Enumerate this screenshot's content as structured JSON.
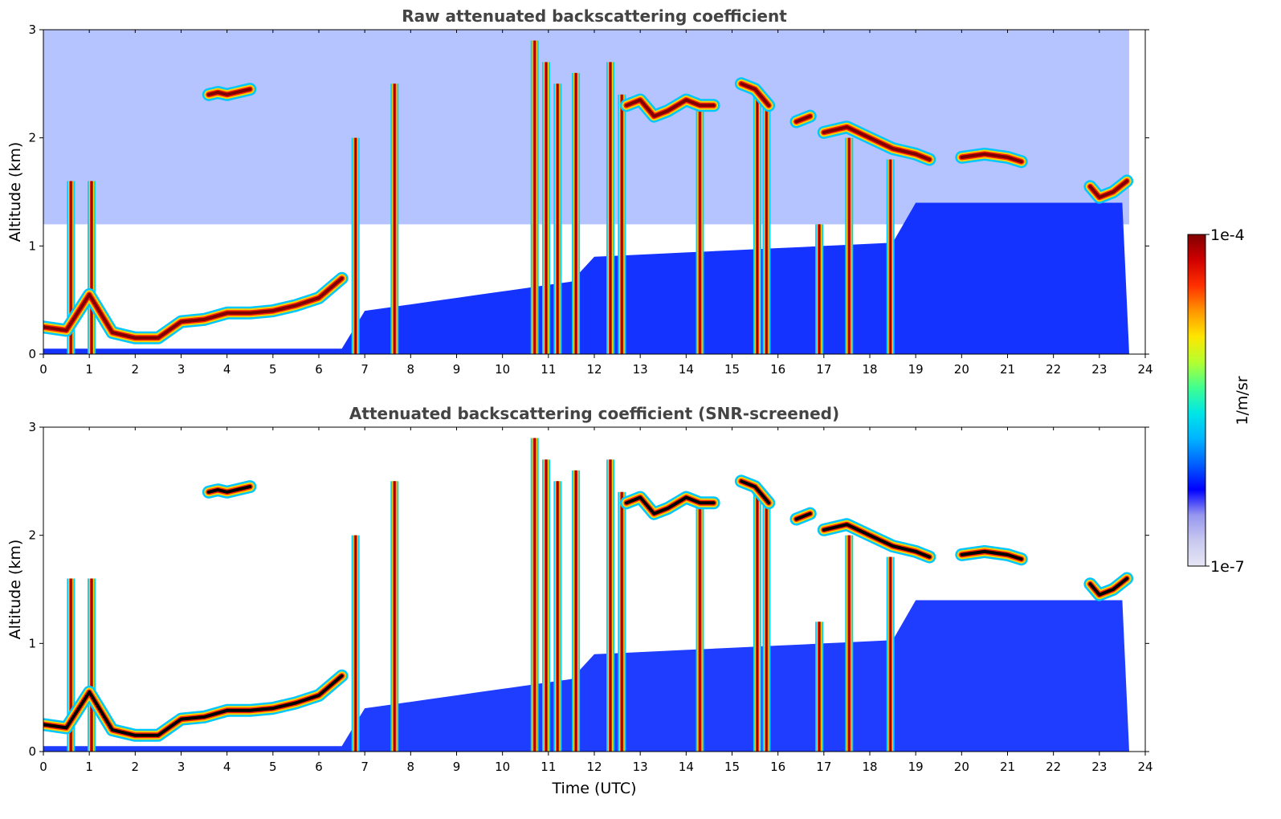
{
  "chart_data": [
    {
      "type": "heatmap",
      "title": "Raw attenuated backscattering coefficient",
      "xlabel": "",
      "ylabel": "Altitude (km)",
      "xlim": [
        0,
        24
      ],
      "ylim": [
        0,
        3
      ],
      "xticks": [
        "0",
        "1",
        "2",
        "3",
        "4",
        "5",
        "6",
        "7",
        "8",
        "9",
        "10",
        "11",
        "12",
        "13",
        "14",
        "15",
        "16",
        "17",
        "18",
        "19",
        "20",
        "21",
        "22",
        "23",
        "24"
      ],
      "yticks": [
        "0",
        "1",
        "2",
        "3"
      ],
      "data_end_hour": 23.65,
      "snr_screened": false,
      "layers": [
        {
          "name": "boundary layer",
          "x": [
            0,
            0.5,
            1,
            1.5,
            2,
            2.5,
            3,
            3.5,
            4,
            4.5,
            5,
            5.5,
            6,
            6.5
          ],
          "y": [
            0.25,
            0.22,
            0.55,
            0.2,
            0.15,
            0.15,
            0.3,
            0.32,
            0.38,
            0.38,
            0.4,
            0.45,
            0.52,
            0.7
          ]
        },
        {
          "name": "cloud A",
          "x": [
            3.6,
            3.8,
            4.0,
            4.2,
            4.5
          ],
          "y": [
            2.4,
            2.42,
            2.4,
            2.42,
            2.45
          ]
        },
        {
          "name": "cloud B",
          "x": [
            12.7,
            13,
            13.3,
            13.6,
            14,
            14.3,
            14.6
          ],
          "y": [
            2.3,
            2.35,
            2.2,
            2.25,
            2.35,
            2.3,
            2.3
          ]
        },
        {
          "name": "cloud C",
          "x": [
            15.2,
            15.5,
            15.8
          ],
          "y": [
            2.5,
            2.45,
            2.3
          ]
        },
        {
          "name": "cloud D",
          "x": [
            16.4,
            16.7
          ],
          "y": [
            2.15,
            2.2
          ]
        },
        {
          "name": "cloud E",
          "x": [
            17.0,
            17.5,
            18.0,
            18.5,
            19.0,
            19.3
          ],
          "y": [
            2.05,
            2.1,
            2.0,
            1.9,
            1.85,
            1.8
          ]
        },
        {
          "name": "cloud F",
          "x": [
            20.0,
            20.5,
            21.0,
            21.3
          ],
          "y": [
            1.82,
            1.85,
            1.82,
            1.78
          ]
        },
        {
          "name": "cloud G",
          "x": [
            22.8,
            23.0,
            23.3,
            23.6
          ],
          "y": [
            1.55,
            1.45,
            1.5,
            1.6
          ]
        }
      ],
      "columns": [
        {
          "x": 0.6,
          "top": 1.6
        },
        {
          "x": 1.05,
          "top": 1.6
        },
        {
          "x": 6.8,
          "top": 2.0
        },
        {
          "x": 7.65,
          "top": 2.5
        },
        {
          "x": 10.7,
          "top": 2.9
        },
        {
          "x": 10.95,
          "top": 2.7
        },
        {
          "x": 11.2,
          "top": 2.5
        },
        {
          "x": 11.6,
          "top": 2.6
        },
        {
          "x": 12.35,
          "top": 2.7
        },
        {
          "x": 12.6,
          "top": 2.4
        },
        {
          "x": 14.3,
          "top": 2.3
        },
        {
          "x": 15.55,
          "top": 2.4
        },
        {
          "x": 15.75,
          "top": 2.3
        },
        {
          "x": 16.9,
          "top": 1.2
        },
        {
          "x": 17.55,
          "top": 2.0
        },
        {
          "x": 18.45,
          "top": 1.8
        }
      ]
    },
    {
      "type": "heatmap",
      "title": "Attenuated backscattering coefficient (SNR-screened)",
      "xlabel": "Time (UTC)",
      "ylabel": "Altitude (km)",
      "xlim": [
        0,
        24
      ],
      "ylim": [
        0,
        3
      ],
      "xticks": [
        "0",
        "1",
        "2",
        "3",
        "4",
        "5",
        "6",
        "7",
        "8",
        "9",
        "10",
        "11",
        "12",
        "13",
        "14",
        "15",
        "16",
        "17",
        "18",
        "19",
        "20",
        "21",
        "22",
        "23",
        "24"
      ],
      "yticks": [
        "0",
        "1",
        "2",
        "3"
      ],
      "data_end_hour": 23.65,
      "snr_screened": true
    }
  ],
  "colorbar": {
    "min_label": "1e-7",
    "max_label": "1e-4",
    "unit_label": "1/m/sr",
    "colormap": "jet",
    "colors": [
      "#e6e6f5",
      "#c8c8f0",
      "#9696f0",
      "#0000ff",
      "#0060ff",
      "#00b4ff",
      "#00e6e6",
      "#40ff90",
      "#b4ff30",
      "#ffe600",
      "#ff9600",
      "#ff3000",
      "#d00000",
      "#800000"
    ]
  }
}
